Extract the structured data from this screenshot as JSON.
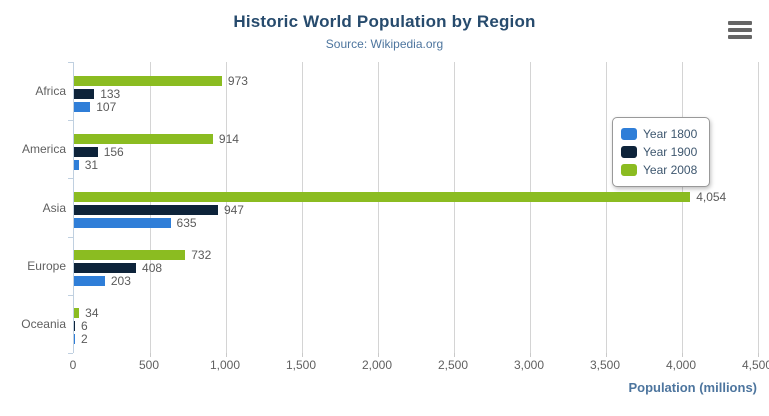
{
  "chart_data": {
    "type": "bar",
    "orientation": "horizontal",
    "title": "Historic World Population by Region",
    "subtitle": "Source: Wikipedia.org",
    "categories": [
      "Africa",
      "America",
      "Asia",
      "Europe",
      "Oceania"
    ],
    "series": [
      {
        "name": "Year 1800",
        "color": "#2f7ed8",
        "values": [
          107,
          31,
          635,
          203,
          2
        ]
      },
      {
        "name": "Year 1900",
        "color": "#0d233a",
        "values": [
          133,
          156,
          947,
          408,
          6
        ]
      },
      {
        "name": "Year 2008",
        "color": "#8bbc21",
        "values": [
          973,
          914,
          4054,
          732,
          34
        ]
      }
    ],
    "bars_order_top_to_bottom": [
      "Year 2008",
      "Year 1900",
      "Year 1800"
    ],
    "xlabel": "Population (millions)",
    "ylabel": "",
    "xlim": [
      0,
      4500
    ],
    "tick_interval": 500,
    "x_tick_labels": [
      "0",
      "500",
      "1,000",
      "1,500",
      "2,000",
      "2,500",
      "3,000",
      "3,500",
      "4,000",
      "4,500"
    ],
    "grid": true,
    "data_labels": true,
    "legend_position": "right"
  },
  "colors": {
    "title": "#274b6d",
    "subtitle": "#4d759e",
    "axis_labels": "#606060",
    "gridline": "#d4d4d4",
    "axis_line": "#c0d0e0",
    "legend_border": "#999999",
    "menu_icon": "#666666"
  },
  "menu": {
    "tooltip_label": "chart context menu"
  }
}
